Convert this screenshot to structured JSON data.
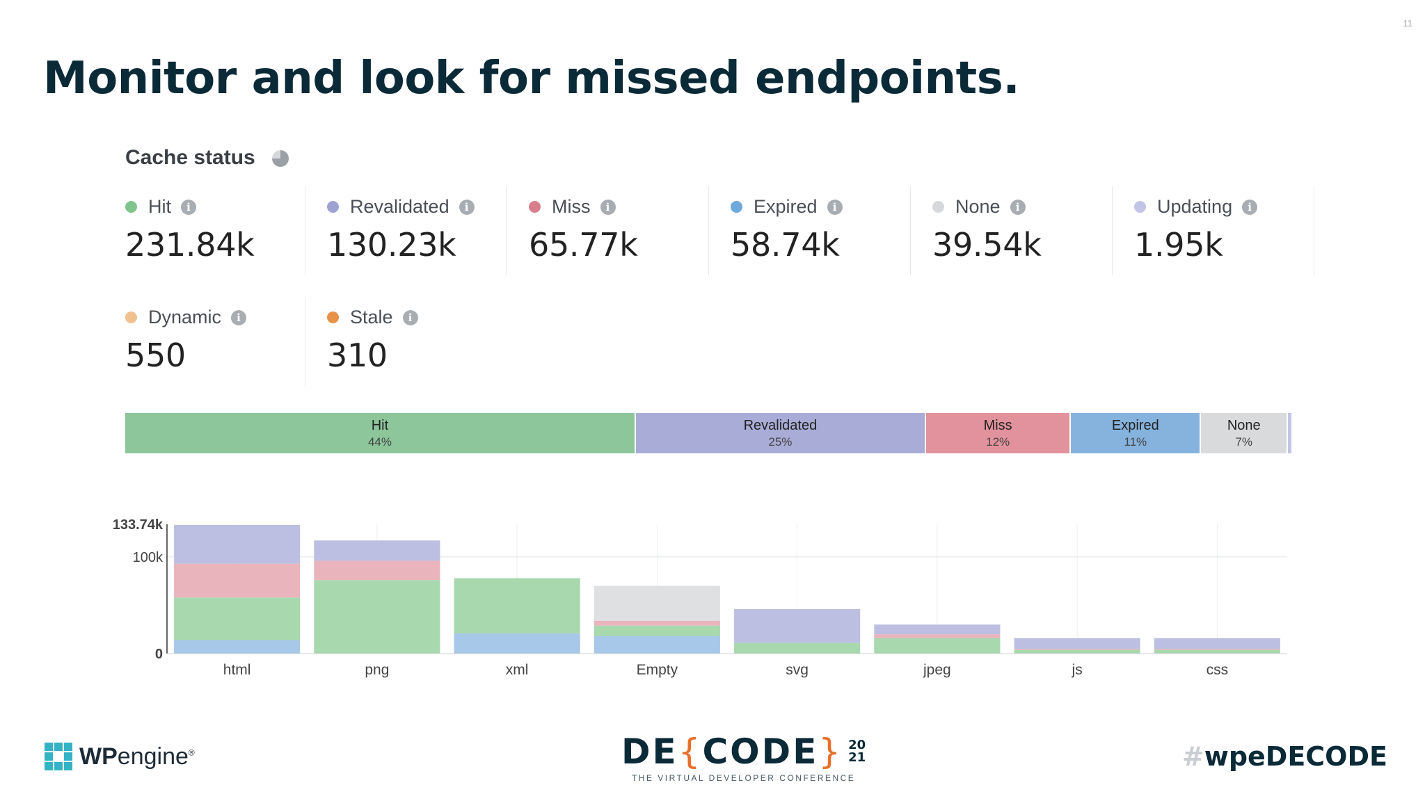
{
  "slide_number": "11",
  "title": "Monitor and look for missed endpoints.",
  "section": {
    "title": "Cache status",
    "icon": "pie-chart-icon"
  },
  "stats": [
    {
      "label": "Hit",
      "value": "231.84k",
      "color": "#7fc48d"
    },
    {
      "label": "Revalidated",
      "value": "130.23k",
      "color": "#9ea3d2"
    },
    {
      "label": "Miss",
      "value": "65.77k",
      "color": "#d97f8c"
    },
    {
      "label": "Expired",
      "value": "58.74k",
      "color": "#6fa8db"
    },
    {
      "label": "None",
      "value": "39.54k",
      "color": "#d6d8db"
    },
    {
      "label": "Updating",
      "value": "1.95k",
      "color": "#c2c5e6"
    },
    {
      "label": "Dynamic",
      "value": "550",
      "color": "#f2c190"
    },
    {
      "label": "Stale",
      "value": "310",
      "color": "#e8924a"
    }
  ],
  "chart_data": [
    {
      "type": "bar",
      "orientation": "horizontal-stacked-100",
      "segments": [
        {
          "name": "Hit",
          "percent": 44,
          "label": "44%",
          "color": "#8cc69a"
        },
        {
          "name": "Revalidated",
          "percent": 25,
          "label": "25%",
          "color": "#a9acd6"
        },
        {
          "name": "Miss",
          "percent": 12.5,
          "label": "12%",
          "color": "#e2929c"
        },
        {
          "name": "Expired",
          "percent": 11.2,
          "label": "11%",
          "color": "#85b3de"
        },
        {
          "name": "None",
          "percent": 7.5,
          "label": "7%",
          "color": "#d9dadc"
        },
        {
          "name": "",
          "percent": 0.4,
          "label": "",
          "color": "#c2c5e6"
        }
      ]
    },
    {
      "type": "bar",
      "stacked": true,
      "categories": [
        "html",
        "png",
        "xml",
        "Empty",
        "svg",
        "jpeg",
        "js",
        "css"
      ],
      "ylim": [
        0,
        133.74
      ],
      "yticks": [
        {
          "value": 0,
          "label": "0"
        },
        {
          "value": 100,
          "label": "100k"
        },
        {
          "value": 133.74,
          "label": "133.74k"
        }
      ],
      "series": [
        {
          "name": "Expired",
          "color": "#a7c8e8",
          "values": [
            14,
            0,
            21,
            18,
            0,
            0,
            0,
            0
          ]
        },
        {
          "name": "Hit",
          "color": "#a8d8ae",
          "values": [
            44,
            76,
            57,
            11,
            11,
            16,
            4,
            4
          ]
        },
        {
          "name": "Miss",
          "color": "#eab4bd",
          "values": [
            35,
            20,
            0,
            5,
            0,
            4,
            1,
            1
          ]
        },
        {
          "name": "None",
          "color": "#dfe0e2",
          "values": [
            0,
            0,
            0,
            36,
            0,
            0,
            0,
            0
          ]
        },
        {
          "name": "Revalidated",
          "color": "#bcbfe2",
          "values": [
            40,
            21,
            0,
            0,
            35,
            10,
            11,
            11
          ]
        }
      ]
    }
  ],
  "footer": {
    "wpengine_logo": {
      "bold": "WP",
      "rest": "engine",
      "mark": "®"
    },
    "decode": {
      "word_start": "DE",
      "brace_open": "{",
      "word_end": "CODE",
      "brace_close": "}",
      "year_top": "20",
      "year_bottom": "21",
      "tagline": "THE VIRTUAL DEVELOPER CONFERENCE"
    },
    "hashtag": {
      "hash": "#",
      "text": "wpeDECODE"
    }
  }
}
